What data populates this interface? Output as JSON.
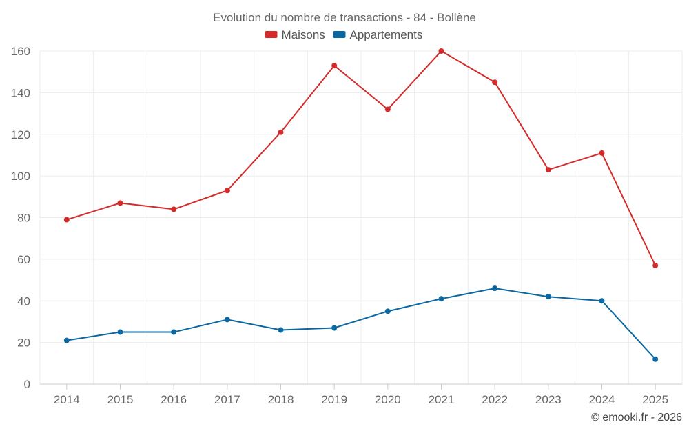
{
  "chart_data": {
    "type": "line",
    "title": "Evolution du nombre de transactions - 84 - Bollène",
    "xlabel": "",
    "ylabel": "",
    "categories": [
      "2014",
      "2015",
      "2016",
      "2017",
      "2018",
      "2019",
      "2020",
      "2021",
      "2022",
      "2023",
      "2024",
      "2025"
    ],
    "ylim": [
      0,
      160
    ],
    "yticks": [
      "0",
      "20",
      "40",
      "60",
      "80",
      "100",
      "120",
      "140",
      "160"
    ],
    "grid": true,
    "legend_position": "top-center",
    "series": [
      {
        "name": "Maisons",
        "color": "#d42a2a",
        "values": [
          79,
          87,
          84,
          93,
          121,
          153,
          132,
          160,
          145,
          103,
          111,
          57
        ]
      },
      {
        "name": "Appartements",
        "color": "#0b67a0",
        "values": [
          21,
          25,
          25,
          31,
          26,
          27,
          35,
          41,
          46,
          42,
          40,
          12
        ]
      }
    ]
  },
  "credit": "© emooki.fr - 2026"
}
